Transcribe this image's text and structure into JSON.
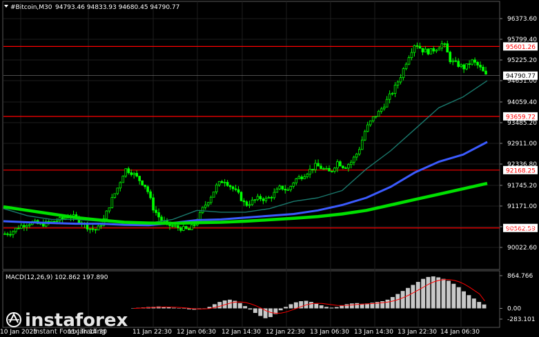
{
  "header": {
    "symbol": "#Bitcoin,M30",
    "ohlc": "94793.46 94833.93 94680.45 94790.77"
  },
  "watermark": {
    "brand": "instaforex",
    "tagline": "Instant Forex Trading"
  },
  "colors": {
    "background": "#000000",
    "candle": "#00ff00",
    "grid": "#1e1e1e",
    "level_line": "#ff0000",
    "ma_fast": "#1a7a6e",
    "ma_mid": "#3b5bff",
    "ma_slow": "#00e000",
    "macd_hist": "#c8c8c8",
    "macd_signal": "#ff0000"
  },
  "chart_data": [
    {
      "type": "candlestick",
      "ylim": [
        90022.6,
        96373.6
      ],
      "yticks": [
        "96373.60",
        "95799.40",
        "95225.20",
        "94651.00",
        "94059.40",
        "93485.20",
        "92911.00",
        "92336.80",
        "91745.20",
        "91171.00",
        "90596.80",
        "90022.60"
      ],
      "xticks": [
        "10 Jan 2025",
        "11 Jan 14:30",
        "11 Jan 22:30",
        "12 Jan 06:30",
        "12 Jan 14:30",
        "12 Jan 22:30",
        "13 Jan 06:30",
        "13 Jan 14:30",
        "13 Jan 22:30",
        "14 Jan 06:30"
      ],
      "current_price": "94790.77",
      "levels": [
        {
          "value": 95601.26,
          "label": "95601.26"
        },
        {
          "value": 93659.72,
          "label": "93659.72"
        },
        {
          "value": 92168.25,
          "label": "92168.25"
        },
        {
          "value": 90562.59,
          "label": "90562.59"
        }
      ],
      "close_path": [
        90400,
        90450,
        90600,
        90680,
        90720,
        90650,
        90700,
        90750,
        90800,
        90900,
        90850,
        90700,
        90550,
        90500,
        90800,
        91300,
        91700,
        92200,
        92100,
        91900,
        91700,
        91100,
        90800,
        90650,
        90600,
        90550,
        90500,
        90700,
        91100,
        91400,
        91750,
        91900,
        91700,
        91500,
        91200,
        91300,
        91400,
        91350,
        91500,
        91700,
        91600,
        91900,
        92000,
        92150,
        92300,
        92200,
        92100,
        92400,
        92250,
        92400,
        92700,
        93300,
        93600,
        93800,
        94100,
        94400,
        94800,
        95300,
        95700,
        95500,
        95450,
        95550,
        95700,
        95200,
        95100,
        95000,
        95200,
        95050,
        94790.77
      ],
      "series": [
        {
          "name": "",
          "style": "thin",
          "values": [
            91100,
            90900,
            90800,
            90800,
            90750,
            90700,
            90700,
            90800,
            91050,
            91000,
            91000,
            91100,
            91300,
            91400,
            91600,
            92200,
            92700,
            93300,
            93900,
            94200,
            94650
          ]
        },
        {
          "name": "",
          "style": "medium",
          "values": [
            90750,
            90720,
            90700,
            90680,
            90680,
            90650,
            90640,
            90700,
            90780,
            90800,
            90850,
            90900,
            90950,
            91050,
            91200,
            91400,
            91700,
            92100,
            92400,
            92600,
            92950
          ]
        },
        {
          "name": "",
          "style": "thick",
          "values": [
            91150,
            91050,
            90950,
            90850,
            90780,
            90720,
            90700,
            90690,
            90710,
            90720,
            90750,
            90790,
            90830,
            90880,
            90950,
            91050,
            91200,
            91350,
            91500,
            91650,
            91800
          ]
        }
      ]
    },
    {
      "type": "macd",
      "title": "MACD(12,26,9) 102.862 197.890",
      "yticks": [
        "864.766",
        "0.00",
        "-283.101"
      ],
      "ylim": [
        -283.101,
        864.766
      ],
      "histogram": [
        0,
        15,
        25,
        35,
        40,
        50,
        45,
        30,
        15,
        5,
        -10,
        -25,
        -35,
        -25,
        -5,
        40,
        110,
        170,
        210,
        230,
        200,
        140,
        60,
        -30,
        -120,
        -200,
        -260,
        -230,
        -150,
        -50,
        40,
        110,
        160,
        190,
        200,
        170,
        120,
        80,
        40,
        20,
        35,
        70,
        110,
        130,
        140,
        120,
        130,
        150,
        170,
        190,
        230,
        300,
        380,
        460,
        540,
        620,
        700,
        780,
        830,
        845,
        820,
        780,
        730,
        650,
        560,
        450,
        350,
        260,
        170,
        103
      ],
      "signal": [
        0,
        5,
        12,
        20,
        27,
        33,
        38,
        36,
        32,
        25,
        15,
        2,
        -10,
        -16,
        -15,
        -2,
        25,
        60,
        100,
        140,
        165,
        170,
        155,
        120,
        70,
        10,
        -60,
        -110,
        -130,
        -125,
        -95,
        -50,
        0,
        50,
        95,
        125,
        135,
        130,
        115,
        95,
        80,
        75,
        80,
        90,
        105,
        115,
        120,
        128,
        138,
        150,
        168,
        195,
        235,
        285,
        345,
        415,
        490,
        565,
        640,
        700,
        740,
        760,
        760,
        740,
        700,
        640,
        560,
        470,
        380,
        198
      ]
    }
  ]
}
